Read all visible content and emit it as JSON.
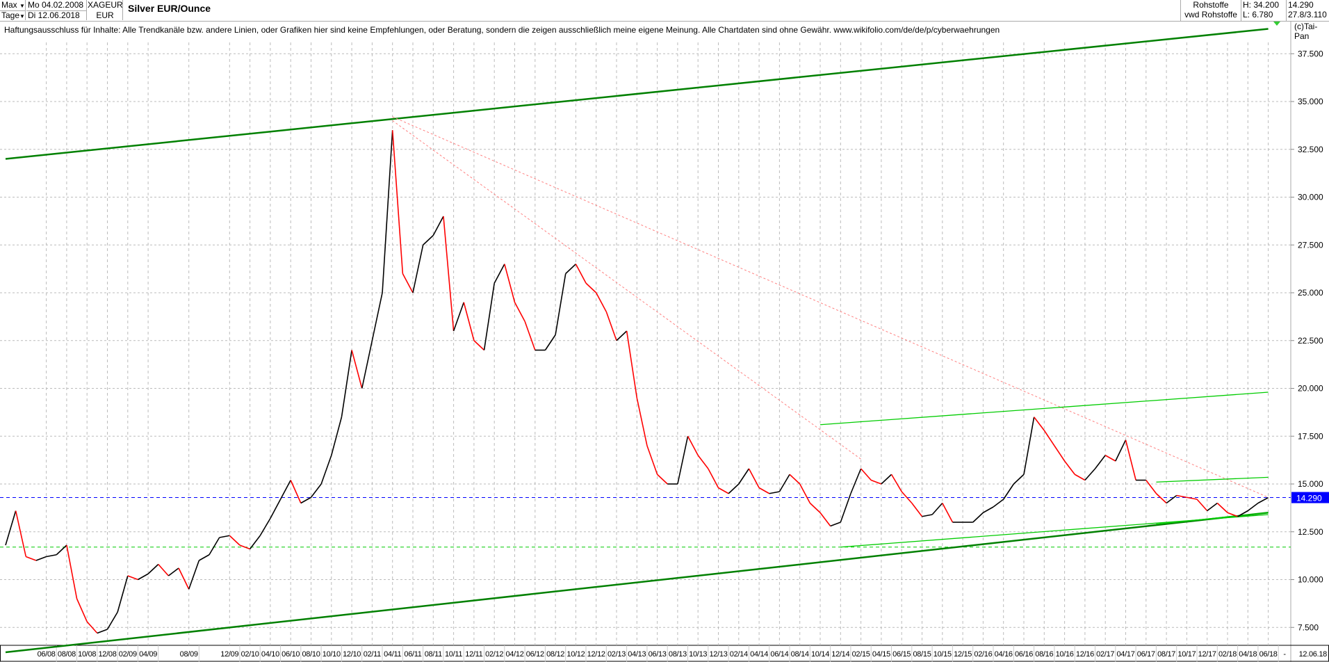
{
  "header": {
    "range": "Max",
    "interval": "Tage",
    "date_from": "Mo 04.02.2008",
    "date_to": "Di 12.06.2018",
    "symbol": "XAGEUR",
    "currency": "EUR",
    "title": "Silver EUR/Ounce",
    "category": "Rohstoffe",
    "source": "vwd Rohstoffe",
    "high": "H: 34.200",
    "low": "L: 6.780",
    "last": "14.290",
    "range_pct": "27.8/3.110"
  },
  "disclaimer": "Haftungsausschluss für Inhalte: Alle Trendkanäle bzw. andere Linien, oder Grafiken hier sind keine Empfehlungen, oder Beratung, sondern die zeigen ausschließlich meine eigene Meinung. Alle Chartdaten sind ohne Gewähr.  www.wikifolio.com/de/de/p/cyberwaehrungen",
  "copyright": "(c)Tai-Pan",
  "chart_data": {
    "type": "line",
    "title": "Silver EUR/Ounce",
    "ylim": [
      7.5,
      37.5
    ],
    "yticks": [
      "7.500",
      "10.000",
      "12.500",
      "15.000",
      "17.500",
      "20.000",
      "22.500",
      "25.000",
      "27.500",
      "30.000",
      "32.500",
      "35.000",
      "37.500"
    ],
    "xticks": [
      "06/08",
      "08/08",
      "10/08",
      "12/08",
      "02/09",
      "04/09",
      "08/09",
      "12/09",
      "02/10",
      "04/10",
      "06/10",
      "08/10",
      "10/10",
      "12/10",
      "02/11",
      "04/11",
      "06/11",
      "08/11",
      "10/11",
      "12/11",
      "02/12",
      "04/12",
      "06/12",
      "08/12",
      "10/12",
      "12/12",
      "02/13",
      "04/13",
      "06/13",
      "08/13",
      "10/13",
      "12/13",
      "02/14",
      "04/14",
      "06/14",
      "08/14",
      "10/14",
      "12/14",
      "02/15",
      "04/15",
      "06/15",
      "08/15",
      "10/15",
      "12/15",
      "02/16",
      "04/16",
      "06/16",
      "08/16",
      "10/16",
      "12/16",
      "02/17",
      "04/17",
      "06/17",
      "08/17",
      "10/17",
      "12/17",
      "02/18",
      "04/18",
      "06/18"
    ],
    "x_end_label": "12.06.18",
    "x_sep": "-",
    "grid": true,
    "last_value_label": "14.290",
    "colors": {
      "up": "#000000",
      "down": "#ff0000",
      "trend_thick": "#008000",
      "trend_thin": "#00cc00",
      "dashed_red": "#ff8080",
      "last_line": "#0000ff",
      "last_box": "#0000ff"
    },
    "series": [
      {
        "x": [
          "2008-02",
          "2008-03",
          "2008-04",
          "2008-05",
          "2008-06",
          "2008-07",
          "2008-08",
          "2008-09",
          "2008-10",
          "2008-11",
          "2008-12",
          "2009-01",
          "2009-02",
          "2009-03",
          "2009-04",
          "2009-05",
          "2009-06",
          "2009-07",
          "2009-08",
          "2009-09",
          "2009-10",
          "2009-11",
          "2009-12",
          "2010-01",
          "2010-02",
          "2010-03",
          "2010-04",
          "2010-05",
          "2010-06",
          "2010-07",
          "2010-08",
          "2010-09",
          "2010-10",
          "2010-11",
          "2010-12",
          "2011-01",
          "2011-02",
          "2011-03",
          "2011-04",
          "2011-05",
          "2011-06",
          "2011-07",
          "2011-08",
          "2011-09",
          "2011-10",
          "2011-11",
          "2011-12",
          "2012-01",
          "2012-02",
          "2012-03",
          "2012-04",
          "2012-05",
          "2012-06",
          "2012-07",
          "2012-08",
          "2012-09",
          "2012-10",
          "2012-11",
          "2012-12",
          "2013-01",
          "2013-02",
          "2013-03",
          "2013-04",
          "2013-05",
          "2013-06",
          "2013-07",
          "2013-08",
          "2013-09",
          "2013-10",
          "2013-11",
          "2013-12",
          "2014-01",
          "2014-02",
          "2014-03",
          "2014-04",
          "2014-05",
          "2014-06",
          "2014-07",
          "2014-08",
          "2014-09",
          "2014-10",
          "2014-11",
          "2014-12",
          "2015-01",
          "2015-02",
          "2015-03",
          "2015-04",
          "2015-05",
          "2015-06",
          "2015-07",
          "2015-08",
          "2015-09",
          "2015-10",
          "2015-11",
          "2015-12",
          "2016-01",
          "2016-02",
          "2016-03",
          "2016-04",
          "2016-05",
          "2016-06",
          "2016-07",
          "2016-08",
          "2016-09",
          "2016-10",
          "2016-11",
          "2016-12",
          "2017-01",
          "2017-02",
          "2017-03",
          "2017-04",
          "2017-05",
          "2017-06",
          "2017-07",
          "2017-08",
          "2017-09",
          "2017-10",
          "2017-11",
          "2017-12",
          "2018-01",
          "2018-02",
          "2018-03",
          "2018-04",
          "2018-05",
          "2018-06"
        ],
        "values": [
          11.8,
          13.6,
          11.2,
          11.0,
          11.2,
          11.3,
          11.8,
          9.0,
          7.8,
          7.2,
          7.4,
          8.3,
          10.2,
          10.0,
          10.3,
          10.8,
          10.2,
          10.6,
          9.5,
          11.0,
          11.3,
          12.2,
          12.3,
          11.8,
          11.6,
          12.3,
          13.2,
          14.2,
          15.2,
          14.0,
          14.3,
          15.0,
          16.5,
          18.5,
          22.0,
          20.0,
          22.5,
          25.0,
          33.5,
          26.0,
          25.0,
          27.5,
          28.0,
          29.0,
          23.0,
          24.5,
          22.5,
          22.0,
          25.5,
          26.5,
          24.5,
          23.5,
          22.0,
          22.0,
          22.8,
          26.0,
          26.5,
          25.5,
          25.0,
          24.0,
          22.5,
          23.0,
          19.5,
          17.0,
          15.5,
          15.0,
          15.0,
          17.5,
          16.5,
          15.8,
          14.8,
          14.5,
          15.0,
          15.8,
          14.8,
          14.5,
          14.6,
          15.5,
          15.0,
          14.0,
          13.5,
          12.8,
          13.0,
          14.5,
          15.8,
          15.2,
          15.0,
          15.5,
          14.6,
          14.0,
          13.3,
          13.4,
          14.0,
          13.0,
          13.0,
          13.0,
          13.5,
          13.8,
          14.2,
          15.0,
          15.5,
          18.5,
          17.8,
          17.0,
          16.2,
          15.5,
          15.2,
          15.8,
          16.5,
          16.2,
          17.3,
          15.2,
          15.2,
          14.5,
          14.0,
          14.4,
          14.3,
          14.2,
          13.6,
          14.0,
          13.5,
          13.3,
          13.6,
          14.0,
          14.29
        ]
      }
    ],
    "trendlines": [
      {
        "style": "thick",
        "from": [
          "2008-02",
          32.0
        ],
        "to": [
          "2018-06",
          38.8
        ]
      },
      {
        "style": "thick",
        "from": [
          "2008-02",
          6.2
        ],
        "to": [
          "2018-06",
          13.5
        ]
      },
      {
        "style": "dashed_red",
        "from": [
          "2011-04",
          34.2
        ],
        "to": [
          "2018-06",
          14.3
        ]
      },
      {
        "style": "dashed_red",
        "from": [
          "2011-04",
          34.0
        ],
        "to": [
          "2015-02",
          16.3
        ]
      },
      {
        "style": "thin",
        "from": [
          "2014-10",
          18.1
        ],
        "to": [
          "2018-06",
          19.8
        ]
      },
      {
        "style": "thin",
        "from": [
          "2014-12",
          11.7
        ],
        "to": [
          "2018-06",
          13.4
        ]
      },
      {
        "style": "thin",
        "from": [
          "2017-07",
          15.1
        ],
        "to": [
          "2018-06",
          15.35
        ]
      },
      {
        "style": "thin",
        "from": [
          "2017-07",
          12.9
        ],
        "to": [
          "2018-06",
          13.5
        ]
      }
    ],
    "hlines": [
      {
        "style": "dotted_green",
        "value": 11.7
      },
      {
        "style": "dotted_blue",
        "value": 14.29
      }
    ]
  }
}
